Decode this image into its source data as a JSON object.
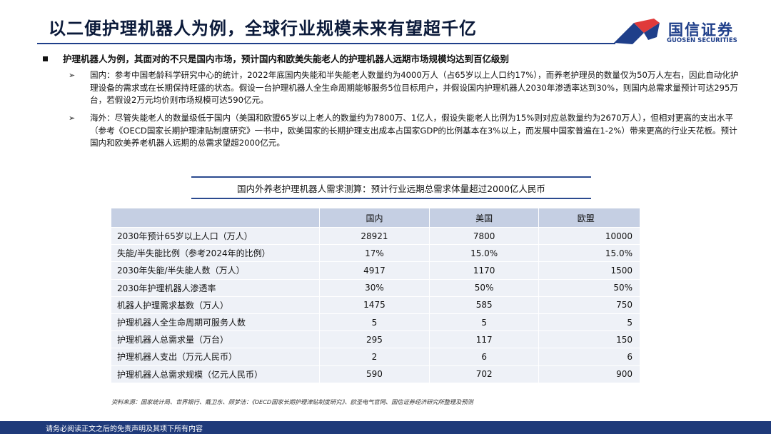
{
  "header": {
    "title": "以二便护理机器人为例，全球行业规模未来有望超千亿",
    "logo_cn": "国信证券",
    "logo_en": "GUOSEN SECURITIES",
    "logo_colors": {
      "primary": "#1f3f8a",
      "accent": "#e03a3a"
    }
  },
  "main_bullet": "护理机器人为例，其面对的不只是国内市场，预计国内和欧美失能老人的护理机器人远期市场规模均达到百亿级别",
  "sub_bullets": [
    {
      "icon": "arrow-bullet-icon",
      "text": "国内：参考中国老龄科学研究中心的统计，2022年底国内失能和半失能老人数量约为4000万人（占65岁以上人口约17%），而养老护理员的数量仅为50万人左右，因此自动化护理设备的需求或在长期保持旺盛的状态。假设一台护理机器人全生命周期能够服务5位目标用户，并假设国内护理机器人2030年渗透率达到30%，则国内总需求量预计可达295万台，若假设2万元均价则市场规模可达590亿元。"
    },
    {
      "icon": "arrow-bullet-icon",
      "text": "海外：尽管失能老人的数量级低于国内（美国和欧盟65岁以上老人的数量约为7800万、1亿人，假设失能老人比例为15%则对应总数量约为2670万人），但相对更高的支出水平（参考《OECD国家长期护理津贴制度研究》一书中，欧美国家的长期护理支出成本占国家GDP的比例基本在3%以上，而发展中国家普遍在1-2%）带来更高的行业天花板。预计国内和欧美养老机器人远期的总需求望超2000亿元。"
    }
  ],
  "table": {
    "title": "国内外养老护理机器人需求测算：预计行业远期总需求体量超过2000亿人民币",
    "columns": [
      "",
      "国内",
      "美国",
      "欧盟"
    ],
    "rows": [
      [
        "2030年预计65岁以上人口（万人）",
        "28921",
        "7800",
        "10000"
      ],
      [
        "失能/半失能比例（参考2024年的比例）",
        "17%",
        "15.0%",
        "15.0%"
      ],
      [
        "2030年失能/半失能人数（万人）",
        "4917",
        "1170",
        "1500"
      ],
      [
        "2030年护理机器人渗透率",
        "30%",
        "50%",
        "50%"
      ],
      [
        "机器人护理需求基数（万人）",
        "1475",
        "585",
        "750"
      ],
      [
        "护理机器人全生命周期可服务人数",
        "5",
        "5",
        "5"
      ],
      [
        "护理机器人总需求量（万台）",
        "295",
        "117",
        "150"
      ],
      [
        "护理机器人支出（万元人民币）",
        "2",
        "6",
        "6"
      ],
      [
        "护理机器人总需求规模（亿元人民币）",
        "590",
        "702",
        "900"
      ]
    ]
  },
  "source": "资料来源：国家统计局、世界银行、戴卫东、顾梦洁：《OECD国家长期护理津贴制度研究》、欧圣电气官网、国信证券经济研究所整理及预测",
  "footer": "请务必阅读正文之后的免责声明及其项下所有内容"
}
